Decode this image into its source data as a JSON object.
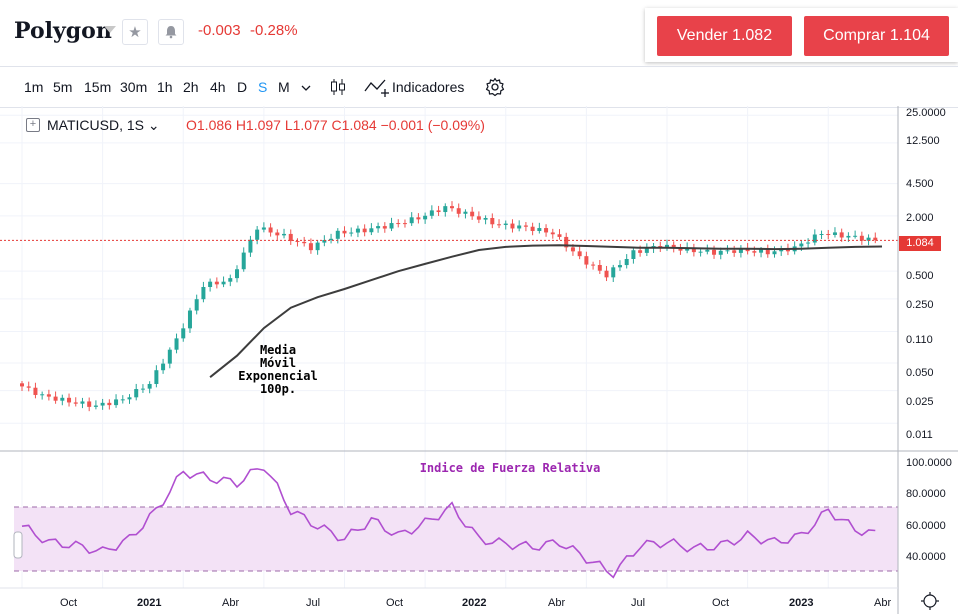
{
  "header": {
    "title": "Polygon",
    "change": "-0.003",
    "change_pct": "-0.28%",
    "icons": [
      "star-icon",
      "bell-icon"
    ]
  },
  "trade": {
    "sell_label": "Vender 1.082",
    "buy_label": "Comprar 1.104"
  },
  "toolbar": {
    "timeframes": [
      "1m",
      "5m",
      "15m",
      "30m",
      "1h",
      "2h",
      "4h",
      "D",
      "S",
      "M"
    ],
    "active_timeframe": "S",
    "indicators_label": "Indicadores"
  },
  "legend": {
    "symbol": "MATICUSD, 1S",
    "ohlc": "O1.086  H1.097  L1.077  C1.084  −0.001 (−0.09%)"
  },
  "annotations": {
    "ema": [
      "Media",
      "Móvil",
      "Exponencial",
      "100p."
    ],
    "rsi": "Indice de Fuerza Relativa"
  },
  "axes": {
    "price_ticks": [
      "25.0000",
      "12.500",
      "4.500",
      "2.000",
      "0.500",
      "0.250",
      "0.110",
      "0.050",
      "0.025",
      "0.011"
    ],
    "current_price": "1.084",
    "rsi_ticks": [
      "100.0000",
      "80.0000",
      "60.0000",
      "40.0000"
    ],
    "time_ticks": [
      "Oct",
      "2021",
      "Abr",
      "Jul",
      "Oct",
      "2022",
      "Abr",
      "Jul",
      "Oct",
      "2023",
      "Abr"
    ]
  },
  "colors": {
    "up": "#26a69a",
    "down": "#ef5350",
    "ema": "#3d3d3d",
    "rsi": "#b04fd0",
    "rsi_band": "#f3e2f6",
    "accent": "#2196f3"
  },
  "chart_data": [
    {
      "type": "line",
      "title": "",
      "x": [
        "2020-08",
        "2020-09",
        "2020-10",
        "2020-11",
        "2020-12",
        "2021-01",
        "2021-02",
        "2021-03",
        "2021-04",
        "2021-05",
        "2021-06",
        "2021-07",
        "2021-08",
        "2021-09",
        "2021-10",
        "2021-11",
        "2021-12",
        "2022-01",
        "2022-02",
        "2022-03",
        "2022-04",
        "2022-05",
        "2022-06",
        "2022-07",
        "2022-08",
        "2022-09",
        "2022-10",
        "2022-11",
        "2022-12",
        "2023-01",
        "2023-02",
        "2023-03",
        "2023-04"
      ],
      "series": [
        {
          "values": [
            0.03,
            0.022,
            0.019,
            0.017,
            0.02,
            0.03,
            0.09,
            0.35,
            0.4,
            1.5,
            1.2,
            0.9,
            1.3,
            1.4,
            1.6,
            1.9,
            2.5,
            2.0,
            1.6,
            1.5,
            1.3,
            0.7,
            0.45,
            0.8,
            0.95,
            0.85,
            0.8,
            0.85,
            0.8,
            0.9,
            1.3,
            1.2,
            1.084
          ]
        },
        {
          "values": [
            null,
            null,
            null,
            null,
            null,
            null,
            null,
            0.035,
            0.06,
            0.12,
            0.2,
            0.26,
            0.32,
            0.4,
            0.5,
            0.6,
            0.72,
            0.85,
            0.92,
            0.95,
            0.96,
            0.94,
            0.92,
            0.9,
            0.9,
            0.89,
            0.88,
            0.88,
            0.87,
            0.88,
            0.9,
            0.92,
            0.93
          ]
        }
      ],
      "ylim": [
        0.008,
        30
      ],
      "yscale": "log"
    },
    {
      "type": "line",
      "title": "Indice de Fuerza Relativa",
      "x": [
        "2020-08",
        "2020-09",
        "2020-10",
        "2020-11",
        "2020-12",
        "2021-01",
        "2021-02",
        "2021-03",
        "2021-04",
        "2021-05",
        "2021-06",
        "2021-07",
        "2021-08",
        "2021-09",
        "2021-10",
        "2021-11",
        "2021-12",
        "2022-01",
        "2022-02",
        "2022-03",
        "2022-04",
        "2022-05",
        "2022-06",
        "2022-07",
        "2022-08",
        "2022-09",
        "2022-10",
        "2022-11",
        "2022-12",
        "2023-01",
        "2023-02",
        "2023-03",
        "2023-04"
      ],
      "series": [
        {
          "values": [
            58,
            48,
            46,
            42,
            50,
            68,
            92,
            88,
            85,
            96,
            68,
            58,
            50,
            62,
            52,
            60,
            70,
            50,
            47,
            45,
            48,
            38,
            28,
            46,
            48,
            44,
            46,
            52,
            48,
            52,
            68,
            56,
            52
          ]
        }
      ],
      "ylim": [
        25,
        100
      ],
      "bands": [
        30,
        70
      ]
    }
  ]
}
